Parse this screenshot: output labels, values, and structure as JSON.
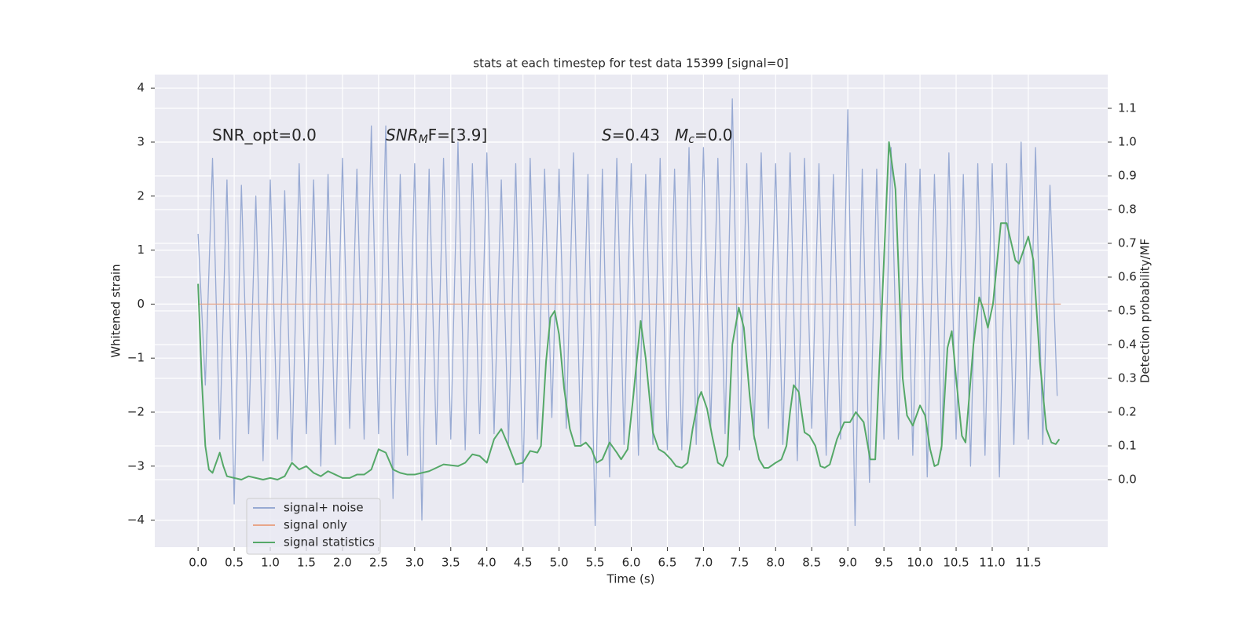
{
  "chart_data": {
    "type": "line",
    "title": "stats at each timestep for test data 15399 [signal=0]",
    "x_label": "Time (s)",
    "y_label": "Whitened strain",
    "y2_label": "Detection probability/MF",
    "annotations": [
      {
        "base": "SNR_opt=0.0"
      },
      {
        "base": "SNR",
        "sub": "M",
        "rest": "F=[3.9]"
      },
      {
        "base": "S",
        "rest": "=0.43"
      },
      {
        "base": "M",
        "sub": "c",
        "rest": "=0.0"
      }
    ],
    "xlim": [
      -0.6,
      12.6
    ],
    "xticks": [
      {
        "value": 0,
        "label": "0.0"
      },
      0.5,
      {
        "value": 1,
        "label": "1.0"
      },
      1.5,
      {
        "value": 2,
        "label": "2.0"
      },
      2.5,
      {
        "value": 3,
        "label": "3.0"
      },
      3.5,
      {
        "value": 4,
        "label": "4.0"
      },
      4.5,
      {
        "value": 5,
        "label": "5.0"
      },
      5.5,
      {
        "value": 6,
        "label": "6.0"
      },
      6.5,
      {
        "value": 7,
        "label": "7.0"
      },
      7.5,
      {
        "value": 8,
        "label": "8.0"
      },
      8.5,
      {
        "value": 9,
        "label": "9.0"
      },
      9.5,
      {
        "value": 10,
        "label": "10.0"
      },
      10.5,
      {
        "value": 11,
        "label": "11.0"
      },
      11.5
    ],
    "ylim": [
      -4.5,
      4.25
    ],
    "yticks": [
      {
        "value": -4,
        "label": "−4"
      },
      {
        "value": -3,
        "label": "−3"
      },
      {
        "value": -2,
        "label": "−2"
      },
      {
        "value": -1,
        "label": "−1"
      },
      0,
      1,
      2,
      3,
      4
    ],
    "y2lim": [
      -0.2,
      1.2
    ],
    "y2ticks": [
      {
        "value": 0,
        "label": "0.0"
      },
      0.1,
      0.2,
      0.3,
      0.4,
      0.5,
      0.6,
      0.7,
      0.8,
      0.9,
      {
        "value": 1,
        "label": "1.0"
      },
      1.1
    ],
    "grid": true,
    "legend": "lower left",
    "series": [
      {
        "name": "signal+ noise",
        "color": "#98aad3",
        "x": [
          0,
          0.1,
          0.2,
          0.3,
          0.4,
          0.5,
          0.6,
          0.7,
          0.8,
          0.9,
          1,
          1.1,
          1.2,
          1.3,
          1.4,
          1.5,
          1.6,
          1.7,
          1.8,
          1.9,
          2,
          2.1,
          2.2,
          2.3,
          2.4,
          2.5,
          2.6,
          2.7,
          2.8,
          2.9,
          3,
          3.1,
          3.2,
          3.3,
          3.4,
          3.5,
          3.6,
          3.7,
          3.8,
          3.9,
          4,
          4.1,
          4.2,
          4.3,
          4.4,
          4.5,
          4.6,
          4.7,
          4.8,
          4.9,
          5,
          5.1,
          5.2,
          5.3,
          5.4,
          5.5,
          5.6,
          5.7,
          5.8,
          5.9,
          6,
          6.1,
          6.2,
          6.3,
          6.4,
          6.5,
          6.6,
          6.7,
          6.8,
          6.9,
          7,
          7.1,
          7.2,
          7.3,
          7.4,
          7.5,
          7.6,
          7.7,
          7.8,
          7.9,
          8,
          8.1,
          8.2,
          8.3,
          8.4,
          8.5,
          8.6,
          8.7,
          8.8,
          8.9,
          9,
          9.1,
          9.2,
          9.3,
          9.4,
          9.5,
          9.6,
          9.7,
          9.8,
          9.9,
          10,
          10.1,
          10.2,
          10.3,
          10.4,
          10.5,
          10.6,
          10.7,
          10.8,
          10.9,
          11,
          11.1,
          11.2,
          11.3,
          11.4,
          11.5,
          11.6,
          11.7,
          11.8,
          11.9
        ],
        "values": [
          1.3,
          -1.5,
          2.7,
          -2.5,
          2.3,
          -3.7,
          2.2,
          -2.4,
          2.0,
          -2.9,
          2.3,
          -2.5,
          2.1,
          -2.9,
          2.6,
          -2.4,
          2.3,
          -3.0,
          2.4,
          -2.6,
          2.7,
          -2.3,
          2.5,
          -2.5,
          3.3,
          -2.4,
          3.3,
          -3.6,
          2.4,
          -2.8,
          2.6,
          -4.0,
          2.5,
          -2.6,
          2.7,
          -2.5,
          3.0,
          -2.7,
          2.6,
          -2.4,
          2.8,
          -2.4,
          2.3,
          -2.6,
          2.6,
          -3.3,
          2.7,
          -2.5,
          2.5,
          -2.1,
          2.5,
          -2.3,
          2.8,
          -2.6,
          2.4,
          -4.1,
          2.5,
          -3.2,
          2.7,
          -2.6,
          2.6,
          -2.8,
          2.4,
          -2.6,
          2.7,
          -2.7,
          2.5,
          -2.7,
          2.9,
          -2.6,
          2.9,
          -2.3,
          2.7,
          -2.4,
          3.8,
          -2.7,
          2.6,
          -2.5,
          2.8,
          -2.3,
          2.6,
          -2.6,
          2.8,
          -2.9,
          2.7,
          -2.3,
          2.6,
          -2.8,
          2.4,
          -2.5,
          3.6,
          -4.1,
          2.5,
          -3.3,
          2.5,
          -2.5,
          2.9,
          -2.5,
          2.6,
          -2.8,
          2.5,
          -3.2,
          2.4,
          -2.7,
          2.8,
          -2.5,
          2.4,
          -3.0,
          2.6,
          -2.8,
          2.6,
          -3.2,
          2.6,
          -2.6,
          3.0,
          -2.5,
          2.9,
          -2.6,
          2.2,
          -1.7
        ]
      },
      {
        "name": "signal only",
        "color": "#e8a68a",
        "x": [
          0,
          11.95
        ],
        "values": [
          0,
          0
        ]
      },
      {
        "name": "signal statistics",
        "color": "#55a868",
        "axis": "y2",
        "x": [
          0,
          0.05,
          0.1,
          0.15,
          0.2,
          0.3,
          0.35,
          0.4,
          0.5,
          0.6,
          0.7,
          0.8,
          0.9,
          1.0,
          1.1,
          1.2,
          1.3,
          1.4,
          1.5,
          1.6,
          1.7,
          1.8,
          1.9,
          2.0,
          2.1,
          2.2,
          2.3,
          2.4,
          2.5,
          2.6,
          2.7,
          2.8,
          2.9,
          3.0,
          3.1,
          3.2,
          3.4,
          3.6,
          3.7,
          3.8,
          3.9,
          4.0,
          4.1,
          4.2,
          4.3,
          4.4,
          4.5,
          4.6,
          4.7,
          4.75,
          4.82,
          4.88,
          4.94,
          5.0,
          5.07,
          5.15,
          5.22,
          5.3,
          5.37,
          5.45,
          5.52,
          5.6,
          5.7,
          5.8,
          5.86,
          5.95,
          6.03,
          6.13,
          6.2,
          6.3,
          6.38,
          6.46,
          6.55,
          6.62,
          6.7,
          6.78,
          6.85,
          6.93,
          6.97,
          7.05,
          7.12,
          7.2,
          7.27,
          7.33,
          7.4,
          7.49,
          7.56,
          7.64,
          7.7,
          7.77,
          7.84,
          7.9,
          8.0,
          8.08,
          8.15,
          8.2,
          8.25,
          8.32,
          8.4,
          8.47,
          8.55,
          8.62,
          8.68,
          8.75,
          8.85,
          8.95,
          9.03,
          9.11,
          9.22,
          9.31,
          9.38,
          9.46,
          9.57,
          9.66,
          9.76,
          9.82,
          9.9,
          10.0,
          10.07,
          10.14,
          10.2,
          10.25,
          10.3,
          10.38,
          10.44,
          10.5,
          10.58,
          10.63,
          10.74,
          10.82,
          10.87,
          10.94,
          11.01,
          11.07,
          11.12,
          11.2,
          11.32,
          11.37,
          11.5,
          11.57,
          11.66,
          11.75,
          11.82,
          11.88,
          11.93
        ],
        "values": [
          0.58,
          0.3,
          0.1,
          0.03,
          0.02,
          0.08,
          0.04,
          0.01,
          0.005,
          0,
          0.01,
          0.005,
          0,
          0.005,
          0,
          0.01,
          0.05,
          0.03,
          0.04,
          0.02,
          0.01,
          0.025,
          0.015,
          0.005,
          0.005,
          0.015,
          0.015,
          0.03,
          0.09,
          0.08,
          0.03,
          0.02,
          0.015,
          0.015,
          0.02,
          0.025,
          0.045,
          0.04,
          0.05,
          0.075,
          0.07,
          0.05,
          0.12,
          0.15,
          0.1,
          0.045,
          0.05,
          0.085,
          0.08,
          0.1,
          0.35,
          0.48,
          0.5,
          0.43,
          0.27,
          0.15,
          0.1,
          0.1,
          0.11,
          0.09,
          0.05,
          0.06,
          0.11,
          0.08,
          0.06,
          0.09,
          0.25,
          0.47,
          0.36,
          0.14,
          0.09,
          0.08,
          0.06,
          0.04,
          0.035,
          0.05,
          0.15,
          0.24,
          0.26,
          0.21,
          0.13,
          0.05,
          0.04,
          0.07,
          0.4,
          0.51,
          0.45,
          0.25,
          0.13,
          0.06,
          0.035,
          0.035,
          0.05,
          0.06,
          0.1,
          0.2,
          0.28,
          0.26,
          0.14,
          0.13,
          0.1,
          0.04,
          0.035,
          0.045,
          0.12,
          0.17,
          0.17,
          0.2,
          0.17,
          0.06,
          0.06,
          0.45,
          1.0,
          0.86,
          0.3,
          0.19,
          0.16,
          0.22,
          0.19,
          0.09,
          0.04,
          0.045,
          0.1,
          0.39,
          0.44,
          0.3,
          0.13,
          0.11,
          0.4,
          0.54,
          0.51,
          0.45,
          0.52,
          0.65,
          0.76,
          0.76,
          0.65,
          0.64,
          0.72,
          0.65,
          0.35,
          0.15,
          0.11,
          0.105,
          0.12
        ]
      }
    ]
  }
}
